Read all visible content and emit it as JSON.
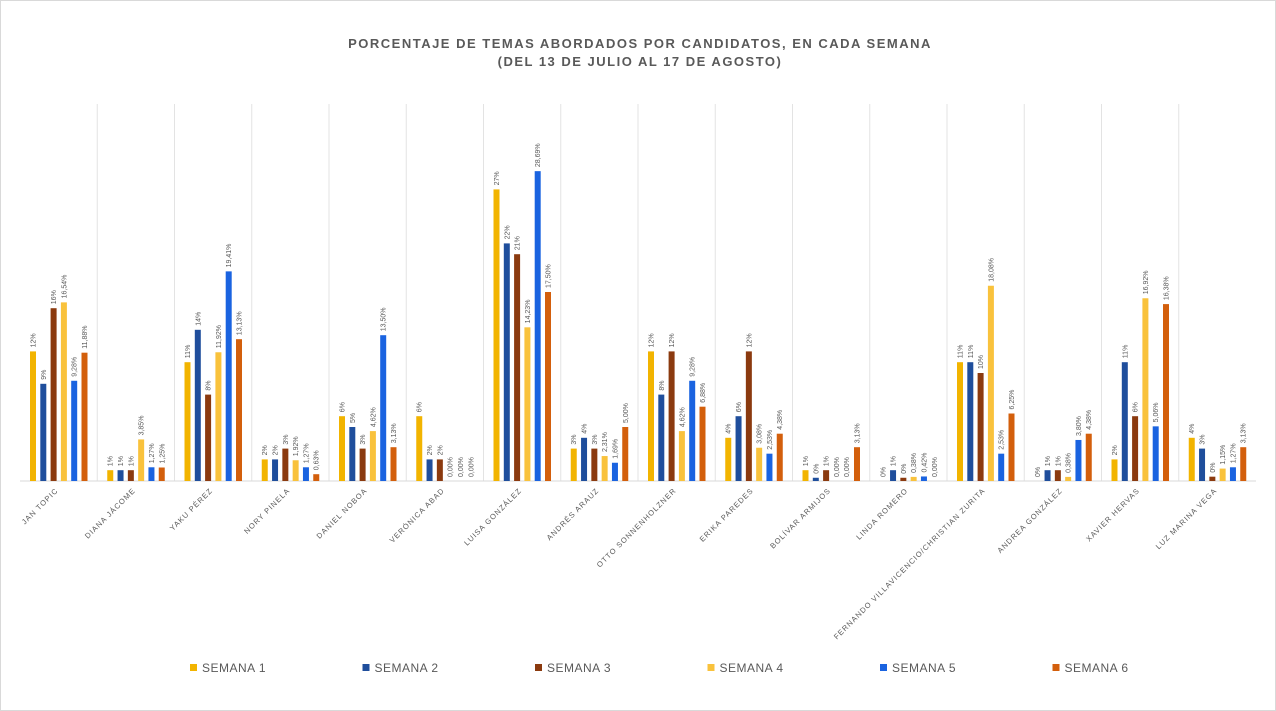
{
  "chart_data": {
    "type": "bar",
    "title": "PORCENTAJE DE TEMAS ABORDADOS POR CANDIDATOS, EN CADA SEMANA",
    "subtitle": "(DEL 13 DE JULIO AL 17 DE AGOSTO)",
    "categories": [
      "JAN TOPIC",
      "DIANA JÁCOME",
      "YAKU PÉREZ",
      "NORY PINELA",
      "DANIEL NOBOA",
      "VERÓNICA ABAD",
      "LUISA GONZÁLEZ",
      "ANDRÉS ARAUZ",
      "OTTO SONNENHOLZNER",
      "ERIKA PAREDES",
      "BOLÍVAR ARMIJOS",
      "LINDA ROMERO",
      "FERNANDO VILLAVICENCIO/CHRISTIAN ZURITA",
      "ANDREA GONZÁLEZ",
      "XAVIER HERVAS",
      "LUZ MARINA VEGA"
    ],
    "series": [
      {
        "name": "SEMANA 1",
        "color": "#f2b400",
        "values": [
          12,
          1,
          11,
          2,
          6,
          6,
          27,
          3,
          12,
          4,
          1,
          0,
          11,
          0,
          2,
          4
        ],
        "value_labels": [
          "12%",
          "1%",
          "11%",
          "2%",
          "6%",
          "6%",
          "27%",
          "3%",
          "12%",
          "4%",
          "1%",
          "0%",
          "11%",
          "0%",
          "2%",
          "4%"
        ]
      },
      {
        "name": "SEMANA 2",
        "color": "#1f4e9c",
        "values": [
          9,
          1,
          14,
          2,
          5,
          2,
          22,
          4,
          8,
          6,
          0.3,
          1,
          11,
          1,
          11,
          3
        ],
        "value_labels": [
          "9%",
          "1%",
          "14%",
          "2%",
          "5%",
          "2%",
          "22%",
          "4%",
          "8%",
          "6%",
          "0%",
          "1%",
          "11%",
          "1%",
          "11%",
          "3%"
        ]
      },
      {
        "name": "SEMANA 3",
        "color": "#8b3a0f",
        "values": [
          16,
          1,
          8,
          3,
          3,
          2,
          21,
          3,
          12,
          12,
          1,
          0.3,
          10,
          1,
          6,
          0.4
        ],
        "value_labels": [
          "16%",
          "1%",
          "8%",
          "3%",
          "3%",
          "2%",
          "21%",
          "3%",
          "12%",
          "12%",
          "1%",
          "0%",
          "10%",
          "1%",
          "6%",
          "0%"
        ]
      },
      {
        "name": "SEMANA 4",
        "color": "#f9c23c",
        "values": [
          16.54,
          3.85,
          11.92,
          1.92,
          4.62,
          0,
          14.23,
          2.31,
          4.62,
          3.08,
          0,
          0.38,
          18.08,
          0.38,
          16.92,
          1.15
        ],
        "value_labels": [
          "16,54%",
          "3,85%",
          "11,92%",
          "1,92%",
          "4,62%",
          "0,00%",
          "14,23%",
          "2,31%",
          "4,62%",
          "3,08%",
          "0,00%",
          "0,38%",
          "18,08%",
          "0,38%",
          "16,92%",
          "1,15%"
        ]
      },
      {
        "name": "SEMANA 5",
        "color": "#1a63e0",
        "values": [
          9.28,
          1.27,
          19.41,
          1.27,
          13.5,
          0,
          28.69,
          1.69,
          9.28,
          2.53,
          0,
          0.42,
          2.53,
          3.8,
          5.06,
          1.27
        ],
        "value_labels": [
          "9,28%",
          "1,27%",
          "19,41%",
          "1,27%",
          "13,50%",
          "0,00%",
          "28,69%",
          "1,69%",
          "9,28%",
          "2,53%",
          "0,00%",
          "0,42%",
          "2,53%",
          "3,80%",
          "5,06%",
          "1,27%"
        ]
      },
      {
        "name": "SEMANA 6",
        "color": "#d35f0c",
        "values": [
          11.88,
          1.25,
          13.13,
          0.63,
          3.13,
          0,
          17.5,
          5,
          6.88,
          4.38,
          3.13,
          0,
          6.25,
          4.38,
          16.38,
          3.13
        ],
        "value_labels": [
          "11,88%",
          "1,25%",
          "13,13%",
          "0,63%",
          "3,13%",
          "0,00%",
          "17,50%",
          "5,00%",
          "6,88%",
          "4,38%",
          "3,13%",
          "0,00%",
          "6,25%",
          "4,38%",
          "16,38%",
          "3,13%"
        ]
      }
    ]
  }
}
